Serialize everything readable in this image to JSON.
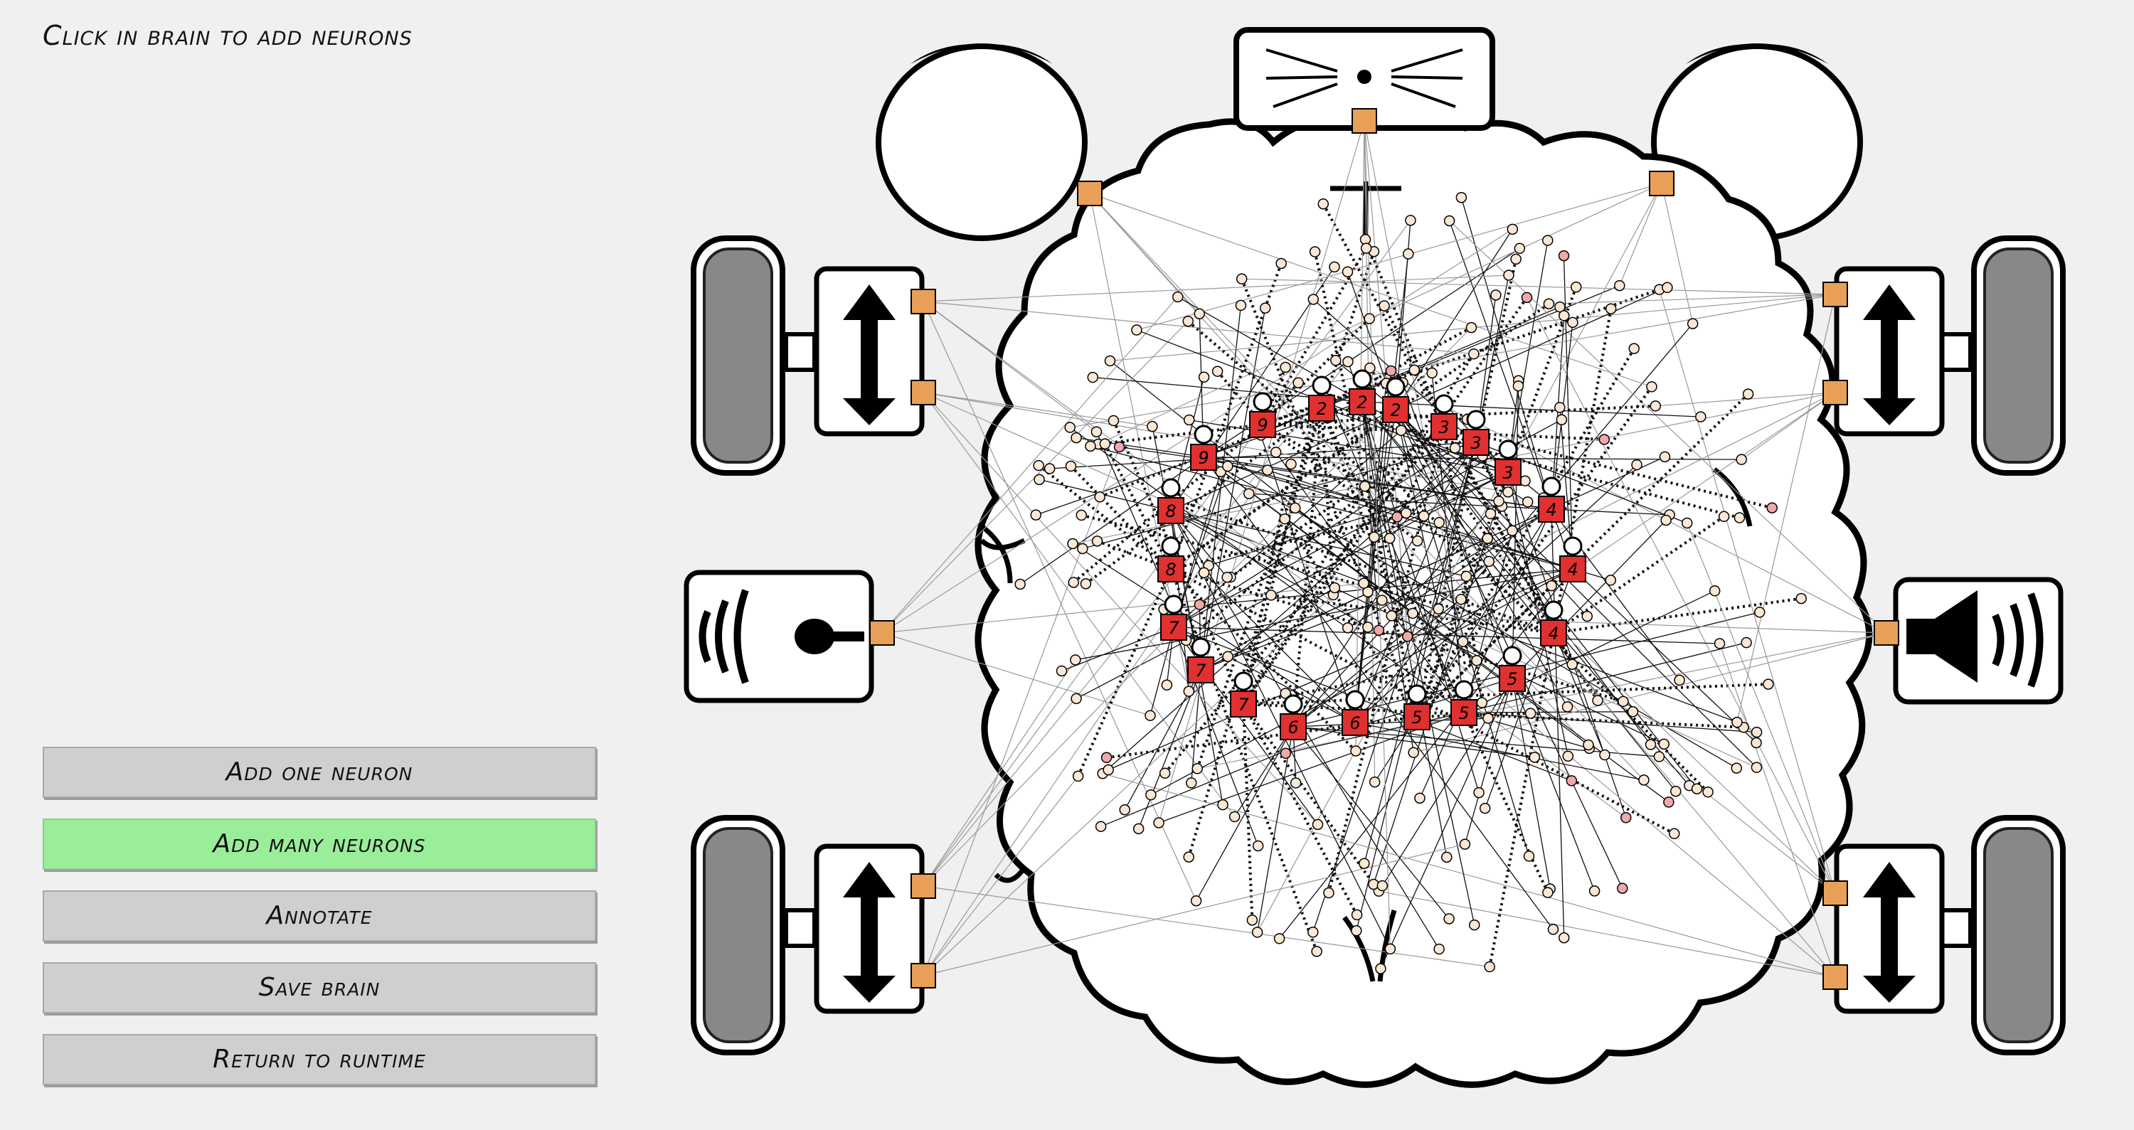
{
  "instruction": "Click in brain to add neurons",
  "menu": {
    "buttons": [
      {
        "id": "add-one-neuron",
        "label": "Add one neuron",
        "active": false
      },
      {
        "id": "add-many-neurons",
        "label": "Add many neurons",
        "active": true
      },
      {
        "id": "annotate",
        "label": "Annotate",
        "active": false
      },
      {
        "id": "save-brain",
        "label": "Save brain",
        "active": false
      },
      {
        "id": "return-to-runtime",
        "label": "Return to runtime",
        "active": false
      }
    ]
  },
  "colors": {
    "background": "#f0f0f0",
    "active_button": "#9aee9a",
    "button": "#cfcfcf",
    "sensor_orange": "#e8a058",
    "label_red": "#e03030",
    "neuron_fill": "#fbe8d4",
    "neuron_pink": "#f0a8a8"
  },
  "brain": {
    "labels": [
      "2",
      "2",
      "2",
      "3",
      "3",
      "3",
      "9",
      "9",
      "8",
      "8",
      "4",
      "4",
      "4",
      "7",
      "7",
      "7",
      "6",
      "6",
      "5",
      "5",
      "5"
    ]
  }
}
